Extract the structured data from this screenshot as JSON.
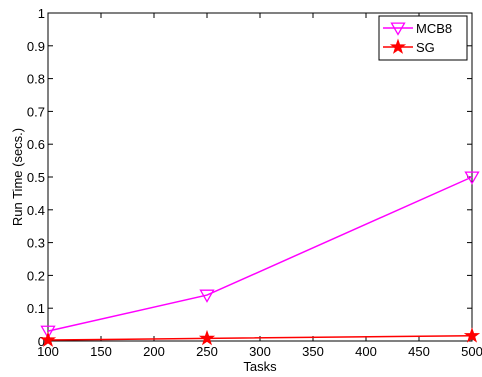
{
  "chart_data": {
    "type": "line",
    "title": "",
    "xlabel": "Tasks",
    "ylabel": "Run Time (secs.)",
    "x": [
      100,
      250,
      500
    ],
    "xlim": [
      100,
      500
    ],
    "ylim": [
      0,
      1
    ],
    "xticks": [
      "100",
      "150",
      "200",
      "250",
      "300",
      "350",
      "400",
      "450",
      "500"
    ],
    "yticks": [
      "0",
      "0.1",
      "0.2",
      "0.3",
      "0.4",
      "0.5",
      "0.6",
      "0.7",
      "0.8",
      "0.9",
      "1"
    ],
    "grid": false,
    "legend_position": "top-right",
    "series": [
      {
        "name": "MCB8",
        "values": [
          0.03,
          0.14,
          0.5
        ],
        "color": "#ff00ff",
        "marker": "triangle-down"
      },
      {
        "name": "SG",
        "values": [
          0.003,
          0.008,
          0.016
        ],
        "color": "#ff0000",
        "marker": "star"
      }
    ]
  }
}
